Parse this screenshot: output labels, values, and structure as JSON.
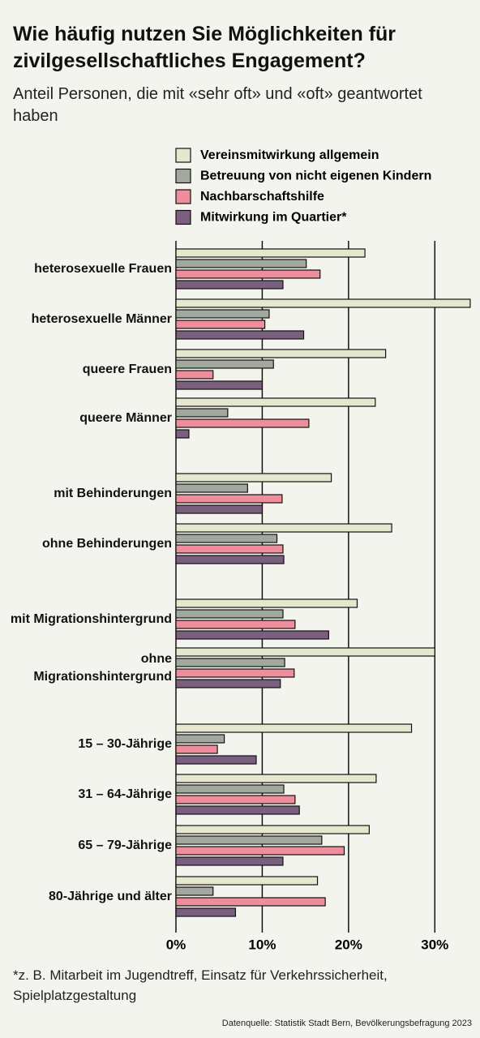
{
  "chart_data": {
    "type": "hbar",
    "title": "Wie häufig nutzen Sie Möglichkeiten für zivilgesellschaftliches Engagement?",
    "subtitle": "Anteil Personen, die mit «sehr oft» und «oft» geantwortet haben",
    "footnote": "*z. B. Mitarbeit im Jugendtreff, Einsatz für Verkehrssicherheit, Spielplatzgestaltung",
    "source": "Datenquelle: Statistik Stadt Bern, Bevölkerungsbefragung 2023",
    "categories": [
      "heterosexuelle Frauen",
      "heterosexuelle Männer",
      "queere Frauen",
      "queere Männer",
      "mit Behinderungen",
      "ohne Behinderungen",
      "mit Migrationshintergrund",
      "ohne Migrationshintergrund",
      "15 – 30-Jährige",
      "31 – 64-Jährige",
      "65 – 79-Jährige",
      "80-Jährige und älter"
    ],
    "series": [
      {
        "name": "Vereinsmitwirkung allgemein",
        "color": "#e6e7cf",
        "values": [
          21.9,
          34.1,
          24.3,
          23.1,
          18.0,
          25.0,
          21.0,
          30.0,
          27.3,
          23.2,
          22.4,
          16.4
        ]
      },
      {
        "name": "Betreuung von nicht eigenen Kindern",
        "color": "#a3a89f",
        "values": [
          15.1,
          10.8,
          11.3,
          6.0,
          8.3,
          11.7,
          12.4,
          12.6,
          5.6,
          12.5,
          16.9,
          4.3
        ]
      },
      {
        "name": "Nachbarschaftshilfe",
        "color": "#ee8e9c",
        "values": [
          16.7,
          10.3,
          4.3,
          15.4,
          12.3,
          12.4,
          13.8,
          13.7,
          4.8,
          13.8,
          19.5,
          17.3
        ]
      },
      {
        "name": "Mitwirkung im Quartier*",
        "color": "#7a5f7e",
        "values": [
          12.4,
          14.8,
          10.0,
          1.5,
          10.0,
          12.5,
          17.7,
          12.1,
          9.3,
          14.3,
          12.4,
          6.9
        ]
      }
    ],
    "xlim": [
      0,
      35
    ],
    "xticks": [
      {
        "value": 0,
        "label": "0%"
      },
      {
        "value": 10,
        "label": "10%"
      },
      {
        "value": 20,
        "label": "20%"
      },
      {
        "value": 30,
        "label": "30%"
      }
    ],
    "grid": true
  }
}
